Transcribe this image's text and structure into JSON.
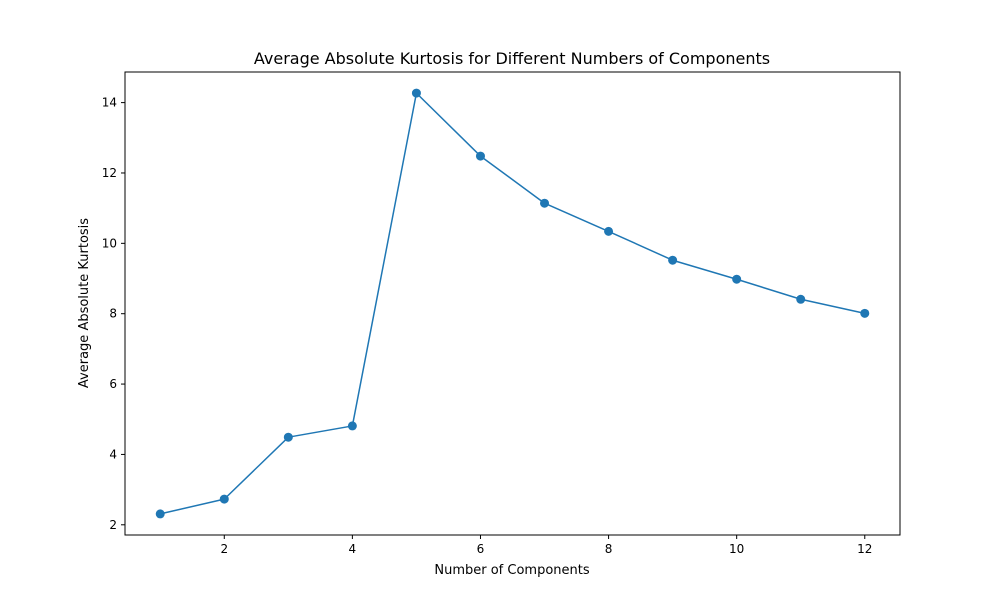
{
  "chart_data": {
    "type": "line",
    "title": "Average Absolute Kurtosis for Different Numbers of Components",
    "xlabel": "Number of Components",
    "ylabel": "Average Absolute Kurtosis",
    "x": [
      1,
      2,
      3,
      4,
      5,
      6,
      7,
      8,
      9,
      10,
      11,
      12
    ],
    "series": [
      {
        "values": [
          2.31,
          2.73,
          4.49,
          4.81,
          14.27,
          12.48,
          11.14,
          10.34,
          9.52,
          8.98,
          8.41,
          8.01
        ]
      }
    ],
    "xlim": [
      0.45,
      12.55
    ],
    "ylim": [
      1.71,
      14.87
    ],
    "xticks": [
      2,
      4,
      6,
      8,
      10,
      12
    ],
    "yticks": [
      2,
      4,
      6,
      8,
      10,
      12,
      14
    ],
    "grid": false,
    "marker": "circle",
    "colors": {
      "series": "#1f77b4",
      "axes": "#000000",
      "background": "#ffffff"
    }
  }
}
